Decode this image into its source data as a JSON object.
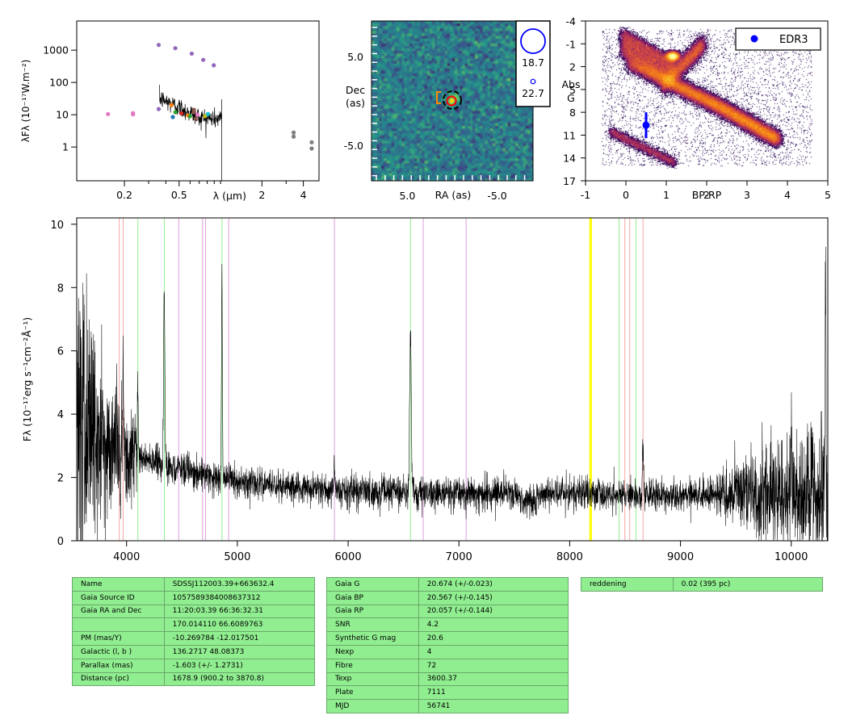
{
  "chart_data": [
    {
      "type": "scatter",
      "xlabel": "λ (μm)",
      "ylabel": "λFλ (10⁻¹⁷W.m⁻²)",
      "xscale": "log",
      "yscale": "log",
      "xlim": [
        0.09,
        5.2
      ],
      "ylim": [
        0.09,
        8000
      ],
      "xticks": [
        {
          "v": 0.2,
          "label": "0.2"
        },
        {
          "v": 0.5,
          "label": "0.5"
        },
        {
          "v": 2,
          "label": "2"
        },
        {
          "v": 4,
          "label": "4"
        }
      ],
      "yticks": [
        {
          "v": 1,
          "label": "1"
        },
        {
          "v": 10,
          "label": "10"
        },
        {
          "v": 100,
          "label": "100"
        },
        {
          "v": 1000,
          "label": "1000"
        }
      ],
      "points": [
        {
          "x": 0.152,
          "y": 10.5,
          "color": "#e377c2"
        },
        {
          "x": 0.231,
          "y": 11.2,
          "color": "#e377c2"
        },
        {
          "x": 0.231,
          "y": 10.3,
          "color": "#e377c2"
        },
        {
          "x": 0.355,
          "y": 1450,
          "color": "#9467bd"
        },
        {
          "x": 0.469,
          "y": 1150,
          "color": "#9467bd"
        },
        {
          "x": 0.617,
          "y": 780,
          "color": "#9467bd"
        },
        {
          "x": 0.748,
          "y": 500,
          "color": "#9467bd"
        },
        {
          "x": 0.893,
          "y": 340,
          "color": "#9467bd"
        },
        {
          "x": 0.355,
          "y": 15,
          "color": "#9467bd"
        },
        {
          "x": 0.44,
          "y": 20,
          "color": "#ff7f0e"
        },
        {
          "x": 0.47,
          "y": 12,
          "color": "#2ca02c"
        },
        {
          "x": 0.45,
          "y": 8.5,
          "color": "#1f77b4"
        },
        {
          "x": 0.52,
          "y": 11,
          "color": "#d62728"
        },
        {
          "x": 0.58,
          "y": 9.5,
          "color": "#ff7f0e"
        },
        {
          "x": 0.64,
          "y": 12,
          "color": "#8c564b"
        },
        {
          "x": 0.66,
          "y": 7.5,
          "color": "#8c564b"
        },
        {
          "x": 0.64,
          "y": 14,
          "color": "#8c564b"
        },
        {
          "x": 0.68,
          "y": 10,
          "color": "#e377c2"
        },
        {
          "x": 0.77,
          "y": 9,
          "color": "#bcbd22"
        },
        {
          "x": 0.81,
          "y": 10.5,
          "color": "#17becf"
        },
        {
          "x": 0.87,
          "y": 9,
          "color": "#7f7f7f"
        },
        {
          "x": 0.6,
          "y": 9,
          "color": "#2ca02c"
        },
        {
          "x": 3.4,
          "y": 2.8,
          "color": "#7f7f7f"
        },
        {
          "x": 3.4,
          "y": 2.1,
          "color": "#7f7f7f"
        },
        {
          "x": 4.6,
          "y": 1.4,
          "color": "#7f7f7f"
        },
        {
          "x": 4.6,
          "y": 0.9,
          "color": "#7f7f7f"
        }
      ]
    },
    {
      "type": "heatmap",
      "xlabel": "RA (as)",
      "ylabel": "Dec (as)",
      "xlim": [
        9,
        -9
      ],
      "ylim": [
        -9,
        9
      ],
      "xticks": [
        {
          "v": 5,
          "label": "5.0"
        },
        {
          "v": -5,
          "label": "-5.0"
        }
      ],
      "yticks": [
        {
          "v": 5,
          "label": "5.0"
        },
        {
          "v": -5,
          "label": "-5.0"
        }
      ],
      "legend": [
        {
          "label": "18.7"
        },
        {
          "label": "22.7"
        }
      ]
    },
    {
      "type": "scatter",
      "title": "",
      "xlabel": "BP-RP",
      "ylabel": "Abs G",
      "xlim": [
        -1,
        5
      ],
      "ylim": [
        17,
        -4
      ],
      "xticks": [
        {
          "v": -1,
          "label": "-1"
        },
        {
          "v": 0,
          "label": "0"
        },
        {
          "v": 1,
          "label": "1"
        },
        {
          "v": 2,
          "label": "2"
        },
        {
          "v": 3,
          "label": "3"
        },
        {
          "v": 4,
          "label": "4"
        },
        {
          "v": 5,
          "label": "5"
        }
      ],
      "yticks": [
        {
          "v": -4,
          "label": "-4"
        },
        {
          "v": -1,
          "label": "-1"
        },
        {
          "v": 2,
          "label": "2"
        },
        {
          "v": 5,
          "label": "5"
        },
        {
          "v": 8,
          "label": "8"
        },
        {
          "v": 11,
          "label": "11"
        },
        {
          "v": 14,
          "label": "14"
        },
        {
          "v": 17,
          "label": "17"
        }
      ],
      "legend": [
        {
          "label": "EDR3"
        }
      ],
      "star": {
        "x": 0.5,
        "y": 9.7,
        "yerr_low": 8.0,
        "yerr_high": 11.4
      }
    },
    {
      "type": "line",
      "xlabel": "",
      "ylabel": "Fλ (10⁻¹⁷erg s⁻¹cm⁻²Å⁻¹)",
      "xlim": [
        3550,
        10330
      ],
      "ylim": [
        0,
        10.2
      ],
      "xticks": [
        {
          "v": 4000,
          "label": "4000"
        },
        {
          "v": 5000,
          "label": "5000"
        },
        {
          "v": 6000,
          "label": "6000"
        },
        {
          "v": 7000,
          "label": "7000"
        },
        {
          "v": 8000,
          "label": "8000"
        },
        {
          "v": 9000,
          "label": "9000"
        },
        {
          "v": 10000,
          "label": "10000"
        }
      ],
      "yticks": [
        {
          "v": 0,
          "label": "0"
        },
        {
          "v": 2,
          "label": "2"
        },
        {
          "v": 4,
          "label": "4"
        },
        {
          "v": 6,
          "label": "6"
        },
        {
          "v": 8,
          "label": "8"
        },
        {
          "v": 10,
          "label": "10"
        }
      ],
      "lines": [
        {
          "x": 3934,
          "color": "#f4a6a6"
        },
        {
          "x": 3969,
          "color": "#f4a6a6"
        },
        {
          "x": 4102,
          "color": "#90ee90"
        },
        {
          "x": 4341,
          "color": "#90ee90"
        },
        {
          "x": 4861,
          "color": "#90ee90"
        },
        {
          "x": 6563,
          "color": "#90ee90"
        },
        {
          "x": 8446,
          "color": "#90ee90"
        },
        {
          "x": 8598,
          "color": "#90ee90"
        },
        {
          "x": 4471,
          "color": "#dda0dd"
        },
        {
          "x": 4686,
          "color": "#dda0dd"
        },
        {
          "x": 4713,
          "color": "#dda0dd"
        },
        {
          "x": 4922,
          "color": "#dda0dd"
        },
        {
          "x": 5876,
          "color": "#dda0dd"
        },
        {
          "x": 6678,
          "color": "#dda0dd"
        },
        {
          "x": 7065,
          "color": "#dda0dd"
        },
        {
          "x": 8183,
          "color": "#ffff00"
        },
        {
          "x": 8195,
          "color": "#ffff00"
        },
        {
          "x": 8498,
          "color": "#f4a6a6"
        },
        {
          "x": 8542,
          "color": "#f4a6a6"
        },
        {
          "x": 8662,
          "color": "#f4a6a6"
        }
      ],
      "emission": [
        {
          "x": 4340,
          "a": 5.6,
          "w": 8
        },
        {
          "x": 4861,
          "a": 6.5,
          "w": 6
        },
        {
          "x": 3970,
          "a": 3.0,
          "w": 6
        },
        {
          "x": 4102,
          "a": 2.2,
          "w": 6
        },
        {
          "x": 6563,
          "a": 5.2,
          "w": 10
        },
        {
          "x": 5876,
          "a": 0.9,
          "w": 6
        },
        {
          "x": 8662,
          "a": 1.4,
          "w": 8
        },
        {
          "x": 10310,
          "a": 7.3,
          "w": 5
        },
        {
          "x": 10000,
          "a": 2.4,
          "w": 5
        }
      ]
    }
  ],
  "tables": {
    "t1": [
      [
        "Name",
        "SDSSJ112003.39+663632.4"
      ],
      [
        "Gaia Source ID",
        "1057589384008637312"
      ],
      [
        "Gaia RA and Dec",
        "11:20:03.39    66:36:32.31"
      ],
      [
        "",
        "170.014110    66.6089763"
      ],
      [
        "PM (mas/Y)",
        "-10.269784    -12.017501"
      ],
      [
        "Galactic (l, b )",
        "136.2717    48.08373"
      ],
      [
        "Parallax (mas)",
        "-1.603 (+/- 1.2731)"
      ],
      [
        "Distance (pc)",
        "1678.9 (900.2 to 3870.8)"
      ]
    ],
    "t2": [
      [
        "Gaia G",
        "20.674 (+/-0.023)"
      ],
      [
        "Gaia BP",
        "20.567 (+/-0.145)"
      ],
      [
        "Gaia RP",
        "20.057 (+/-0.144)"
      ],
      [
        "SNR",
        "4.2"
      ],
      [
        "Synthetic G mag",
        "20.6"
      ],
      [
        "Nexp",
        "4"
      ],
      [
        "Fibre",
        "72"
      ],
      [
        "Texp",
        "3600.37"
      ],
      [
        "Plate",
        "7111"
      ],
      [
        "MJD",
        "56741"
      ]
    ],
    "t3": [
      [
        "reddening",
        "0.02 (395 pc)"
      ]
    ]
  }
}
